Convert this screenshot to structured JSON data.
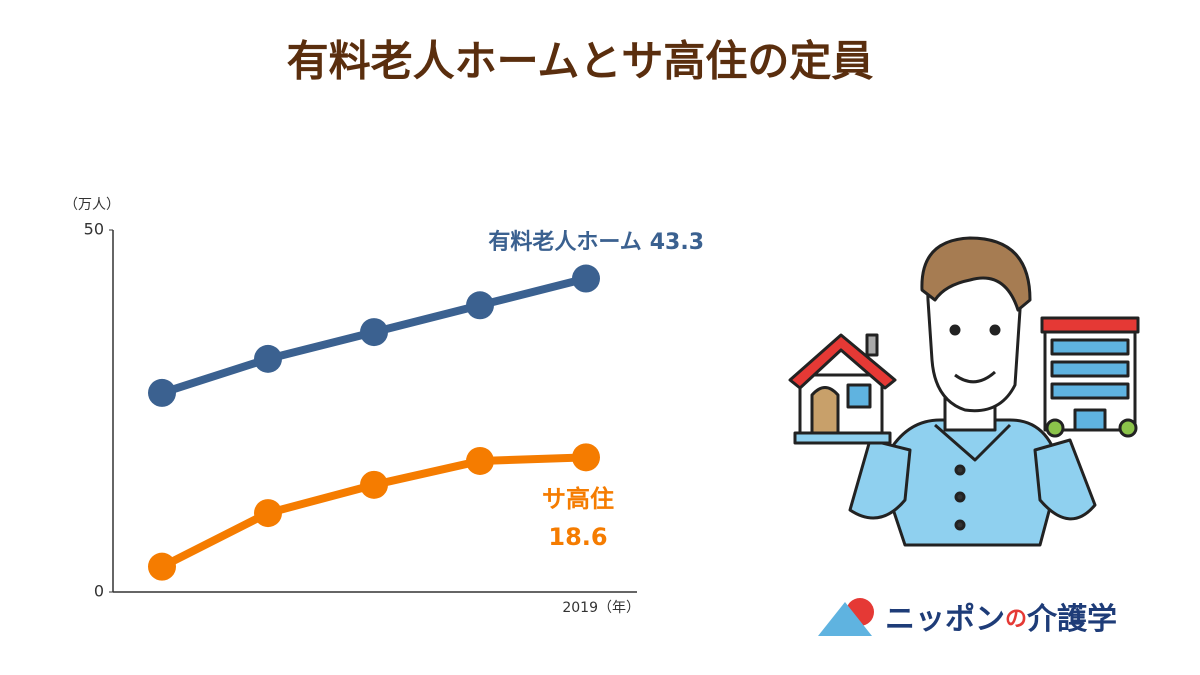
{
  "chart_data": {
    "type": "line",
    "title": "有料老人ホームとサ高住の定員",
    "y_unit": "（万人）",
    "x_unit": "（年）",
    "categories": [
      null,
      null,
      null,
      null,
      "2019"
    ],
    "series": [
      {
        "name": "有料老人ホーム",
        "color": "#3b6190",
        "values": [
          27.5,
          32.2,
          35.9,
          39.6,
          43.3
        ]
      },
      {
        "name": "サ高住",
        "color": "#f57c00",
        "values": [
          3.5,
          10.9,
          14.8,
          18.1,
          18.6
        ]
      }
    ],
    "ylim": [
      0,
      50
    ],
    "yticks": [
      0,
      50
    ],
    "grid": false
  },
  "logo": {
    "part1": "ニッポン",
    "part2": "の",
    "part3": "介護学"
  }
}
